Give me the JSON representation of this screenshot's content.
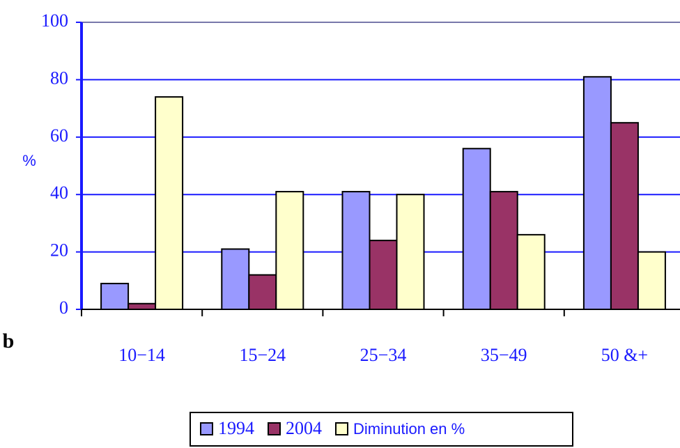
{
  "chart_data": {
    "type": "bar",
    "y_label": "%",
    "annotation": "b",
    "categories": [
      "10−14",
      "15−24",
      "25−34",
      "35−49",
      "50 &+"
    ],
    "series": [
      {
        "name": "1994",
        "color": "#9999ff",
        "values": [
          9,
          21,
          41,
          56,
          81
        ]
      },
      {
        "name": "2004",
        "color": "#993366",
        "values": [
          2,
          12,
          24,
          41,
          65
        ]
      },
      {
        "name": "Diminution en %",
        "color": "#ffffcc",
        "values": [
          74,
          41,
          40,
          26,
          20
        ]
      }
    ],
    "ylim": [
      0,
      100
    ],
    "yticks": [
      0,
      20,
      40,
      60,
      80,
      100
    ],
    "grid": true,
    "legend": "bottom"
  }
}
